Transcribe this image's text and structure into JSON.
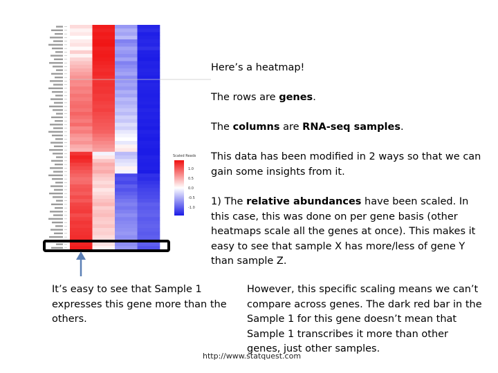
{
  "intro": {
    "line1": "Here’s a heatmap!",
    "rows_pre": "The rows are ",
    "rows_bold": "genes",
    "rows_post": ".",
    "cols_pre": "The ",
    "cols_bold1": "columns",
    "cols_mid": " are ",
    "cols_bold2": "RNA-seq samples",
    "cols_post": ".",
    "modified": "This data has been modified in 2 ways so that we can gain some insights from it.",
    "scaled_pre": "1) The ",
    "scaled_bold": "relative abundances",
    "scaled_post": " have been scaled. In this case, this was done on per gene basis (other heatmaps scale all the genes at once). This makes it easy to see that sample X has more/less of gene Y than sample Z."
  },
  "left_note": "It’s easy to see that Sample 1 expresses this gene more than the others.",
  "right_note": "However, this specific scaling means we can’t compare across genes. The dark red bar in the Sample 1 for this gene doesn’t mean that Sample 1 transcribes it more than other genes, just other samples.",
  "footer": "http://www.statquest.com",
  "colors": {
    "red": "#f01010",
    "blue": "#1a1ae6",
    "highlight_box": "#000000",
    "arrow": "#5b7fb5"
  },
  "chart_data": {
    "type": "heatmap",
    "columns": 4,
    "rows": 62,
    "scale": [
      -1.0,
      1.0
    ],
    "legend_title": "Scaled Reads",
    "legend_ticks": [
      "1.0",
      "0.5",
      "0.0",
      "-0.5",
      "-1.0"
    ],
    "values": [
      [
        0.15,
        0.95,
        -0.45,
        -0.95
      ],
      [
        0.05,
        0.92,
        -0.35,
        -0.92
      ],
      [
        0.1,
        0.96,
        -0.4,
        -0.98
      ],
      [
        0.0,
        0.94,
        -0.3,
        -0.96
      ],
      [
        0.08,
        0.97,
        -0.55,
        -0.94
      ],
      [
        0.12,
        0.98,
        -0.5,
        -0.95
      ],
      [
        0.02,
        0.93,
        -0.4,
        -0.9
      ],
      [
        0.2,
        0.95,
        -0.45,
        -0.97
      ],
      [
        0.05,
        0.96,
        -0.5,
        -0.98
      ],
      [
        0.18,
        0.94,
        -0.4,
        -0.99
      ],
      [
        0.25,
        0.92,
        -0.55,
        -0.96
      ],
      [
        0.3,
        0.9,
        -0.5,
        -0.97
      ],
      [
        0.35,
        0.88,
        -0.45,
        -0.95
      ],
      [
        0.4,
        0.9,
        -0.4,
        -0.96
      ],
      [
        0.45,
        0.87,
        -0.5,
        -0.98
      ],
      [
        0.5,
        0.85,
        -0.45,
        -0.97
      ],
      [
        0.48,
        0.86,
        -0.4,
        -0.95
      ],
      [
        0.55,
        0.84,
        -0.45,
        -0.96
      ],
      [
        0.52,
        0.85,
        -0.35,
        -0.97
      ],
      [
        0.58,
        0.82,
        -0.4,
        -0.98
      ],
      [
        0.55,
        0.83,
        -0.3,
        -0.97
      ],
      [
        0.6,
        0.8,
        -0.35,
        -0.96
      ],
      [
        0.62,
        0.78,
        -0.3,
        -0.98
      ],
      [
        0.58,
        0.8,
        -0.25,
        -0.95
      ],
      [
        0.65,
        0.76,
        -0.3,
        -0.97
      ],
      [
        0.6,
        0.74,
        -0.2,
        -0.96
      ],
      [
        0.55,
        0.72,
        -0.25,
        -0.98
      ],
      [
        0.62,
        0.7,
        -0.15,
        -0.97
      ],
      [
        0.5,
        0.68,
        -0.2,
        -0.99
      ],
      [
        0.55,
        0.66,
        -0.1,
        -0.96
      ],
      [
        0.45,
        0.6,
        -0.05,
        -0.98
      ],
      [
        0.4,
        0.55,
        0.0,
        -0.99
      ],
      [
        0.45,
        0.5,
        -0.1,
        -0.97
      ],
      [
        0.35,
        0.45,
        0.05,
        -0.98
      ],
      [
        0.3,
        0.4,
        0.1,
        -0.99
      ],
      [
        0.85,
        -0.05,
        -0.3,
        -0.99
      ],
      [
        0.92,
        0.1,
        -0.25,
        -0.96
      ],
      [
        0.88,
        0.25,
        -0.15,
        -0.97
      ],
      [
        0.8,
        0.35,
        -0.1,
        -0.98
      ],
      [
        0.75,
        0.3,
        0.05,
        -0.97
      ],
      [
        0.7,
        0.35,
        -0.05,
        -0.99
      ],
      [
        0.65,
        0.25,
        -0.8,
        -0.9
      ],
      [
        0.6,
        0.2,
        -0.75,
        -0.92
      ],
      [
        0.62,
        0.15,
        -0.8,
        -0.88
      ],
      [
        0.7,
        0.2,
        -0.7,
        -0.85
      ],
      [
        0.72,
        0.1,
        -0.75,
        -0.82
      ],
      [
        0.68,
        0.15,
        -0.7,
        -0.8
      ],
      [
        0.75,
        0.2,
        -0.65,
        -0.78
      ],
      [
        0.7,
        0.25,
        -0.6,
        -0.75
      ],
      [
        0.78,
        0.3,
        -0.55,
        -0.7
      ],
      [
        0.8,
        0.2,
        -0.6,
        -0.72
      ],
      [
        0.82,
        0.25,
        -0.55,
        -0.7
      ],
      [
        0.75,
        0.28,
        -0.5,
        -0.68
      ],
      [
        0.8,
        0.22,
        -0.55,
        -0.72
      ],
      [
        0.84,
        0.2,
        -0.52,
        -0.7
      ],
      [
        0.82,
        0.25,
        -0.5,
        -0.68
      ],
      [
        0.85,
        0.18,
        -0.48,
        -0.7
      ],
      [
        0.86,
        0.2,
        -0.45,
        -0.72
      ],
      [
        0.88,
        0.15,
        -0.5,
        -0.7
      ],
      [
        0.9,
        0.1,
        -0.45,
        -0.72
      ],
      [
        0.92,
        0.12,
        -0.5,
        -0.7
      ],
      [
        0.95,
        0.05,
        -0.45,
        -0.75
      ]
    ]
  }
}
